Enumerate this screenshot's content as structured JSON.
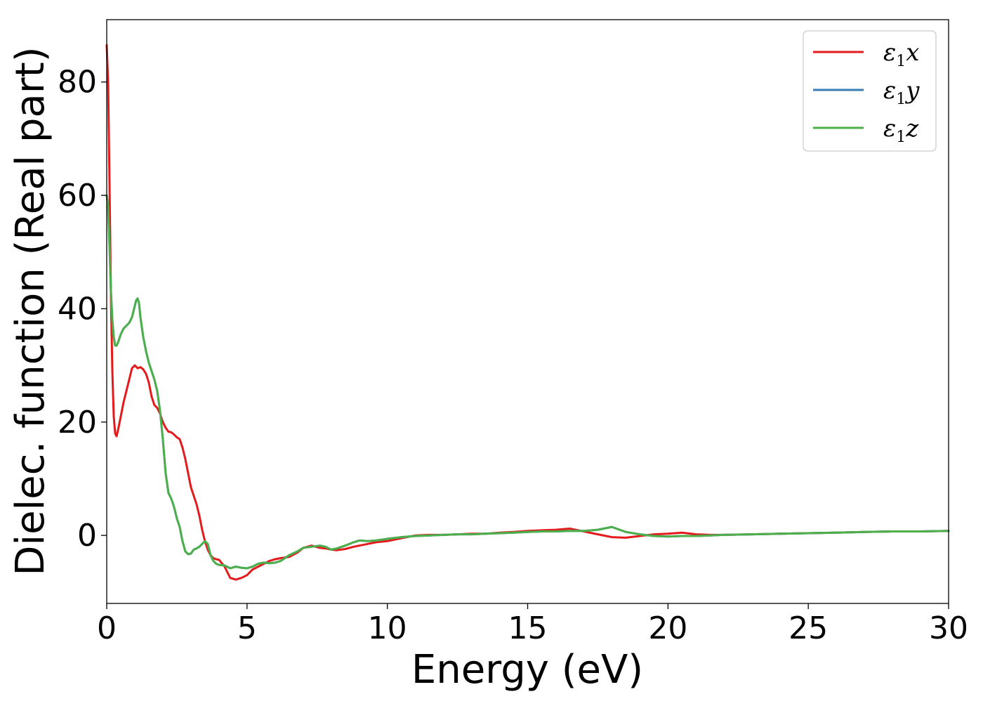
{
  "chart_data": {
    "type": "line",
    "xlabel": "Energy (eV)",
    "ylabel": "Dielec. function (Real part)",
    "xlim": [
      0,
      30
    ],
    "ylim": [
      -12,
      91
    ],
    "xticks": [
      0,
      5,
      10,
      15,
      20,
      25,
      30
    ],
    "xtick_labels": [
      "0",
      "5",
      "10",
      "15",
      "20",
      "25",
      "30"
    ],
    "yticks": [
      0,
      20,
      40,
      60,
      80
    ],
    "ytick_labels": [
      "0",
      "20",
      "40",
      "60",
      "80"
    ],
    "grid": false,
    "legend_position": "top-right",
    "series": [
      {
        "name": "ε1x",
        "legend_symbol": "ε",
        "legend_sub": "1",
        "legend_var": "x",
        "color": "#e41a1c",
        "x": [
          0,
          0.05,
          0.1,
          0.15,
          0.2,
          0.25,
          0.3,
          0.35,
          0.4,
          0.5,
          0.6,
          0.7,
          0.8,
          0.9,
          1.0,
          1.1,
          1.2,
          1.3,
          1.4,
          1.5,
          1.6,
          1.7,
          1.8,
          1.9,
          2.0,
          2.1,
          2.2,
          2.3,
          2.4,
          2.5,
          2.6,
          2.7,
          2.8,
          2.9,
          3.0,
          3.1,
          3.2,
          3.3,
          3.4,
          3.5,
          3.6,
          3.7,
          3.8,
          3.9,
          4.0,
          4.2,
          4.4,
          4.6,
          4.8,
          5.0,
          5.2,
          5.4,
          5.6,
          5.8,
          6.0,
          6.2,
          6.5,
          6.8,
          7.0,
          7.3,
          7.6,
          7.8,
          8.0,
          8.2,
          8.5,
          8.8,
          9.0,
          9.3,
          9.6,
          10.0,
          10.5,
          11.0,
          11.5,
          12.0,
          12.5,
          13.0,
          13.5,
          14.0,
          14.5,
          15.0,
          15.5,
          16.0,
          16.5,
          17.0,
          17.5,
          18.0,
          18.5,
          19.0,
          19.5,
          20.0,
          20.5,
          21.0,
          21.5,
          22.0,
          23.0,
          24.0,
          25.0,
          26.0,
          27.0,
          28.0,
          29.0,
          30.0
        ],
        "y": [
          86.5,
          80.0,
          62.0,
          42.0,
          29.0,
          21.0,
          18.0,
          17.5,
          18.5,
          21.0,
          23.5,
          25.5,
          27.5,
          29.5,
          30.0,
          29.5,
          29.7,
          29.3,
          28.5,
          27.0,
          24.5,
          23.0,
          22.5,
          21.5,
          20.0,
          19.0,
          18.3,
          18.2,
          17.8,
          17.3,
          17.0,
          15.5,
          13.5,
          11.0,
          8.5,
          7.0,
          5.5,
          3.5,
          1.0,
          -1.0,
          -2.5,
          -3.5,
          -4.0,
          -4.2,
          -4.3,
          -5.5,
          -7.5,
          -7.8,
          -7.5,
          -7.0,
          -6.0,
          -5.5,
          -5.0,
          -4.5,
          -4.2,
          -4.0,
          -3.8,
          -3.0,
          -2.2,
          -1.8,
          -2.2,
          -2.3,
          -2.5,
          -2.6,
          -2.4,
          -2.0,
          -1.8,
          -1.5,
          -1.2,
          -1.0,
          -0.5,
          0.0,
          0.1,
          0.1,
          0.2,
          0.3,
          0.3,
          0.5,
          0.6,
          0.8,
          0.9,
          1.0,
          1.2,
          0.7,
          0.2,
          -0.3,
          -0.4,
          -0.1,
          0.2,
          0.3,
          0.5,
          0.2,
          0.1,
          0.1,
          0.2,
          0.3,
          0.4,
          0.5,
          0.6,
          0.7,
          0.7,
          0.8
        ]
      },
      {
        "name": "ε1y",
        "legend_symbol": "ε",
        "legend_sub": "1",
        "legend_var": "y",
        "color": "#377eb8",
        "x": [
          0,
          0.05,
          0.1,
          0.15,
          0.2,
          0.25,
          0.3,
          0.35,
          0.4,
          0.5,
          0.6,
          0.7,
          0.8,
          0.9,
          1.0,
          1.05,
          1.1,
          1.15,
          1.2,
          1.3,
          1.4,
          1.5,
          1.6,
          1.7,
          1.8,
          1.9,
          2.0,
          2.1,
          2.2,
          2.3,
          2.4,
          2.5,
          2.6,
          2.7,
          2.8,
          2.9,
          3.0,
          3.1,
          3.2,
          3.3,
          3.4,
          3.5,
          3.6,
          3.7,
          3.8,
          3.9,
          4.0,
          4.2,
          4.4,
          4.6,
          4.8,
          5.0,
          5.2,
          5.4,
          5.6,
          5.8,
          6.0,
          6.2,
          6.5,
          6.8,
          7.0,
          7.3,
          7.6,
          7.8,
          8.0,
          8.2,
          8.5,
          8.8,
          9.0,
          9.3,
          9.6,
          10.0,
          10.5,
          11.0,
          11.5,
          12.0,
          12.5,
          13.0,
          13.5,
          14.0,
          14.5,
          15.0,
          15.5,
          16.0,
          16.5,
          17.0,
          17.5,
          18.0,
          18.5,
          19.0,
          19.5,
          20.0,
          20.5,
          21.0,
          21.5,
          22.0,
          23.0,
          24.0,
          25.0,
          26.0,
          27.0,
          28.0,
          29.0,
          30.0
        ],
        "y": [
          60.0,
          58.0,
          51.0,
          43.0,
          38.0,
          35.0,
          33.5,
          33.5,
          34.0,
          35.5,
          36.5,
          37.0,
          37.5,
          38.5,
          40.5,
          41.5,
          41.8,
          41.0,
          38.5,
          35.0,
          32.5,
          30.5,
          29.0,
          27.5,
          25.5,
          22.0,
          17.0,
          11.0,
          7.5,
          6.5,
          5.0,
          3.0,
          1.5,
          -1.0,
          -2.8,
          -3.3,
          -3.2,
          -2.5,
          -2.3,
          -2.0,
          -1.5,
          -1.0,
          -1.5,
          -3.5,
          -4.5,
          -5.0,
          -5.2,
          -5.3,
          -5.8,
          -5.5,
          -5.7,
          -5.8,
          -5.5,
          -5.0,
          -4.8,
          -4.9,
          -4.8,
          -4.5,
          -3.5,
          -2.8,
          -2.2,
          -2.0,
          -1.8,
          -2.0,
          -2.5,
          -2.3,
          -1.8,
          -1.2,
          -0.9,
          -1.0,
          -0.9,
          -0.6,
          -0.3,
          -0.1,
          0.0,
          0.1,
          0.2,
          0.2,
          0.3,
          0.4,
          0.5,
          0.6,
          0.7,
          0.7,
          0.8,
          0.8,
          1.0,
          1.5,
          0.6,
          0.2,
          -0.1,
          -0.2,
          -0.1,
          -0.1,
          0.0,
          0.1,
          0.2,
          0.3,
          0.4,
          0.5,
          0.6,
          0.7,
          0.7,
          0.8
        ]
      },
      {
        "name": "ε1z",
        "legend_symbol": "ε",
        "legend_sub": "1",
        "legend_var": "z",
        "color": "#4daf4a",
        "x": [
          0,
          0.05,
          0.1,
          0.15,
          0.2,
          0.25,
          0.3,
          0.35,
          0.4,
          0.5,
          0.6,
          0.7,
          0.8,
          0.9,
          1.0,
          1.05,
          1.1,
          1.15,
          1.2,
          1.3,
          1.4,
          1.5,
          1.6,
          1.7,
          1.8,
          1.9,
          2.0,
          2.1,
          2.2,
          2.3,
          2.4,
          2.5,
          2.6,
          2.7,
          2.8,
          2.9,
          3.0,
          3.1,
          3.2,
          3.3,
          3.4,
          3.5,
          3.6,
          3.7,
          3.8,
          3.9,
          4.0,
          4.2,
          4.4,
          4.6,
          4.8,
          5.0,
          5.2,
          5.4,
          5.6,
          5.8,
          6.0,
          6.2,
          6.5,
          6.8,
          7.0,
          7.3,
          7.6,
          7.8,
          8.0,
          8.2,
          8.5,
          8.8,
          9.0,
          9.3,
          9.6,
          10.0,
          10.5,
          11.0,
          11.5,
          12.0,
          12.5,
          13.0,
          13.5,
          14.0,
          14.5,
          15.0,
          15.5,
          16.0,
          16.5,
          17.0,
          17.5,
          18.0,
          18.5,
          19.0,
          19.5,
          20.0,
          20.5,
          21.0,
          21.5,
          22.0,
          23.0,
          24.0,
          25.0,
          26.0,
          27.0,
          28.0,
          29.0,
          30.0
        ],
        "y": [
          60.0,
          58.0,
          51.0,
          43.0,
          38.0,
          35.0,
          33.5,
          33.5,
          34.0,
          35.5,
          36.5,
          37.0,
          37.5,
          38.5,
          40.5,
          41.5,
          41.8,
          41.0,
          38.5,
          35.0,
          32.5,
          30.5,
          29.0,
          27.5,
          25.5,
          22.0,
          17.0,
          11.0,
          7.5,
          6.5,
          5.0,
          3.0,
          1.5,
          -1.0,
          -2.8,
          -3.3,
          -3.2,
          -2.5,
          -2.3,
          -2.0,
          -1.5,
          -1.0,
          -1.5,
          -3.5,
          -4.5,
          -5.0,
          -5.2,
          -5.3,
          -5.8,
          -5.5,
          -5.7,
          -5.8,
          -5.5,
          -5.0,
          -4.8,
          -4.9,
          -4.8,
          -4.5,
          -3.5,
          -2.8,
          -2.2,
          -2.0,
          -1.8,
          -2.0,
          -2.5,
          -2.3,
          -1.8,
          -1.2,
          -0.9,
          -1.0,
          -0.9,
          -0.6,
          -0.3,
          -0.1,
          0.0,
          0.1,
          0.2,
          0.2,
          0.3,
          0.4,
          0.5,
          0.6,
          0.7,
          0.7,
          0.8,
          0.8,
          1.0,
          1.5,
          0.6,
          0.2,
          -0.1,
          -0.2,
          -0.1,
          -0.1,
          0.0,
          0.1,
          0.2,
          0.3,
          0.4,
          0.5,
          0.6,
          0.7,
          0.7,
          0.8
        ]
      }
    ]
  }
}
